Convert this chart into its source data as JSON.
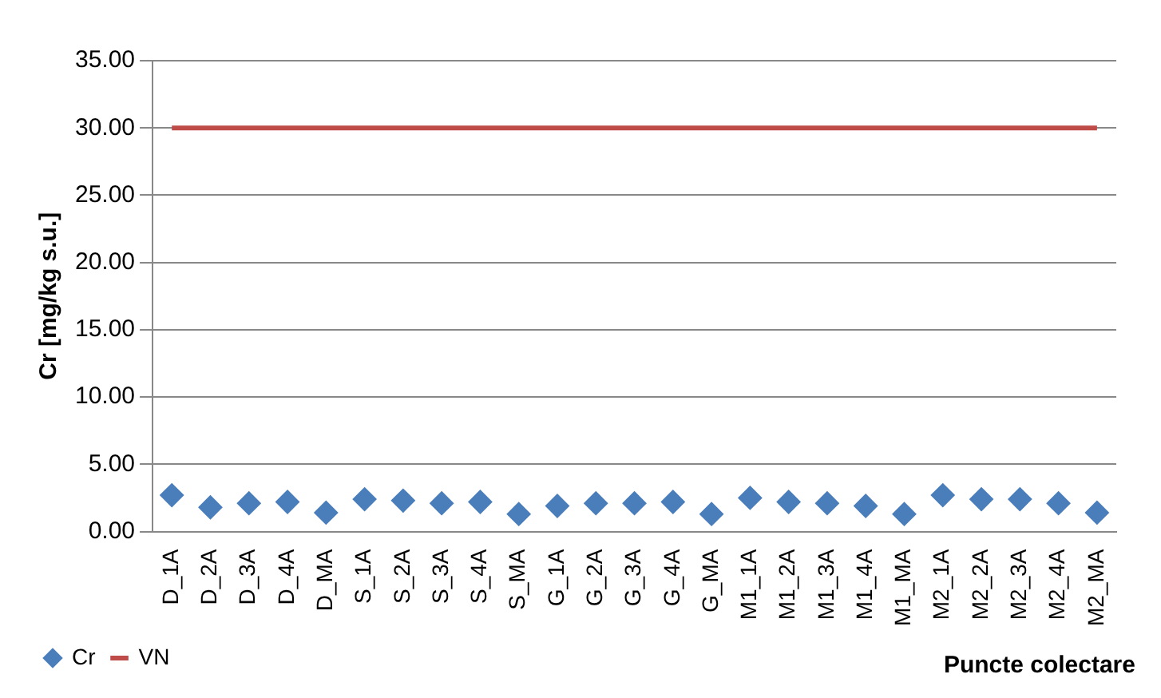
{
  "chart_data": {
    "type": "scatter",
    "xlabel": "Puncte colectare",
    "ylabel": "Cr [mg/kg s.u.]",
    "categories": [
      "D_1A",
      "D_2A",
      "D_3A",
      "D_4A",
      "D_MA",
      "S_1A",
      "S_2A",
      "S_3A",
      "S_4A",
      "S_MA",
      "G_1A",
      "G_2A",
      "G_3A",
      "G_4A",
      "G_MA",
      "M1_1A",
      "M1_2A",
      "M1_3A",
      "M1_4A",
      "M1_MA",
      "M2_1A",
      "M2_2A",
      "M2_3A",
      "M2_4A",
      "M2_MA"
    ],
    "series": [
      {
        "name": "Cr",
        "color": "#4a7ebb",
        "marker": "diamond",
        "values": [
          2.7,
          1.8,
          2.1,
          2.2,
          1.4,
          2.4,
          2.3,
          2.1,
          2.2,
          1.3,
          1.9,
          2.1,
          2.1,
          2.2,
          1.3,
          2.5,
          2.2,
          2.1,
          1.9,
          1.3,
          2.7,
          2.4,
          2.4,
          2.1,
          1.4
        ]
      },
      {
        "name": "VN",
        "type": "line",
        "color": "#be4b48",
        "marker": "none",
        "values": [
          30,
          30,
          30,
          30,
          30,
          30,
          30,
          30,
          30,
          30,
          30,
          30,
          30,
          30,
          30,
          30,
          30,
          30,
          30,
          30,
          30,
          30,
          30,
          30,
          30
        ]
      }
    ],
    "ylim": [
      0,
      35
    ],
    "yticks": [
      {
        "value": 0,
        "label": "0.00"
      },
      {
        "value": 5,
        "label": "5.00"
      },
      {
        "value": 10,
        "label": "10.00"
      },
      {
        "value": 15,
        "label": "15.00"
      },
      {
        "value": 20,
        "label": "20.00"
      },
      {
        "value": 25,
        "label": "25.00"
      },
      {
        "value": 30,
        "label": "30.00"
      },
      {
        "value": 35,
        "label": "35.00"
      }
    ],
    "grid": "y",
    "legend": "bottom left"
  }
}
